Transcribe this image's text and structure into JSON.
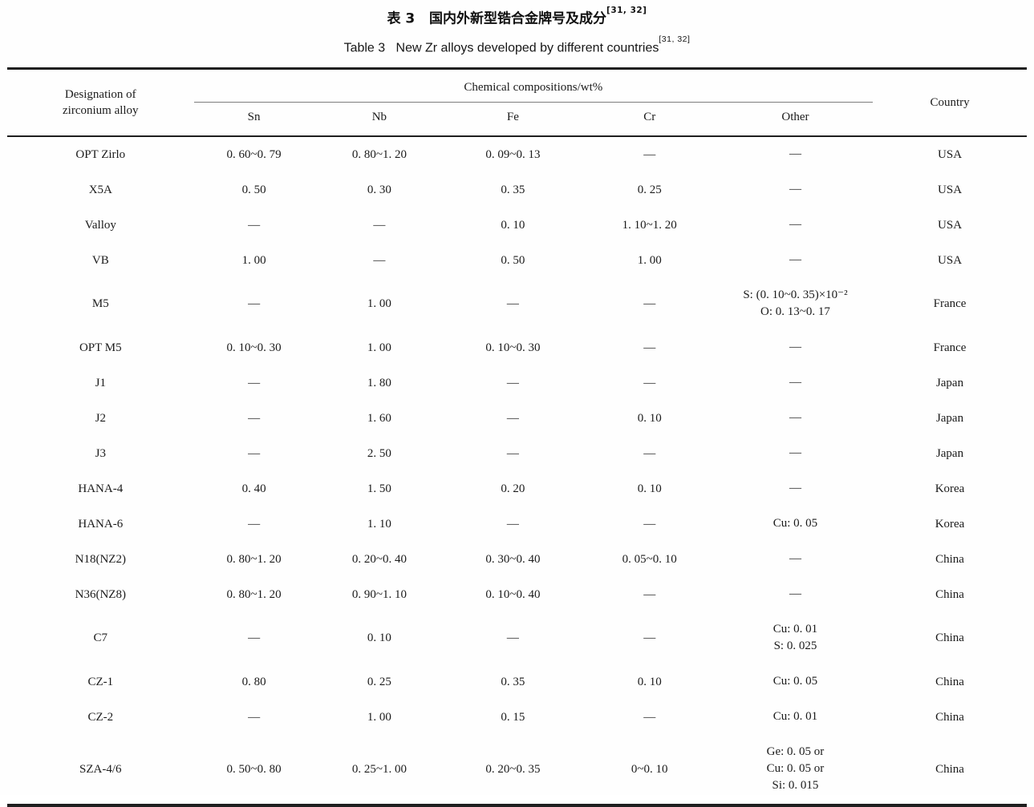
{
  "title": {
    "zh": "表 3   国内外新型锆合金牌号及成分",
    "zh_ref": "[31, 32]",
    "en": "Table 3   New Zr alloys developed by different countries",
    "en_ref": "[31, 32]"
  },
  "table": {
    "header": {
      "designation": "Designation of\nzirconium alloy",
      "group": "Chemical compositions/wt%",
      "elements": [
        "Sn",
        "Nb",
        "Fe",
        "Cr",
        "Other"
      ],
      "country": "Country"
    },
    "columns": [
      "name",
      "sn",
      "nb",
      "fe",
      "cr",
      "other",
      "country"
    ],
    "rows": [
      {
        "name": "OPT Zirlo",
        "sn": "0. 60~0. 79",
        "nb": "0. 80~1. 20",
        "fe": "0. 09~0. 13",
        "cr": "—",
        "other": "—",
        "country": "USA"
      },
      {
        "name": "X5A",
        "sn": "0. 50",
        "nb": "0. 30",
        "fe": "0. 35",
        "cr": "0. 25",
        "other": "—",
        "country": "USA"
      },
      {
        "name": "Valloy",
        "sn": "—",
        "nb": "—",
        "fe": "0. 10",
        "cr": "1. 10~1. 20",
        "other": "—",
        "country": "USA"
      },
      {
        "name": "VB",
        "sn": "1. 00",
        "nb": "—",
        "fe": "0. 50",
        "cr": "1. 00",
        "other": "—",
        "country": "USA"
      },
      {
        "name": "M5",
        "sn": "—",
        "nb": "1. 00",
        "fe": "—",
        "cr": "—",
        "other": "S: (0. 10~0. 35)×10⁻²\nO: 0. 13~0. 17",
        "country": "France"
      },
      {
        "name": "OPT M5",
        "sn": "0. 10~0. 30",
        "nb": "1. 00",
        "fe": "0. 10~0. 30",
        "cr": "—",
        "other": "—",
        "country": "France"
      },
      {
        "name": "J1",
        "sn": "—",
        "nb": "1. 80",
        "fe": "—",
        "cr": "—",
        "other": "—",
        "country": "Japan"
      },
      {
        "name": "J2",
        "sn": "—",
        "nb": "1. 60",
        "fe": "—",
        "cr": "0. 10",
        "other": "—",
        "country": "Japan"
      },
      {
        "name": "J3",
        "sn": "—",
        "nb": "2. 50",
        "fe": "—",
        "cr": "—",
        "other": "—",
        "country": "Japan"
      },
      {
        "name": "HANA-4",
        "sn": "0. 40",
        "nb": "1. 50",
        "fe": "0. 20",
        "cr": "0. 10",
        "other": "—",
        "country": "Korea"
      },
      {
        "name": "HANA-6",
        "sn": "—",
        "nb": "1. 10",
        "fe": "—",
        "cr": "—",
        "other": "Cu: 0. 05",
        "country": "Korea"
      },
      {
        "name": "N18(NZ2)",
        "sn": "0. 80~1. 20",
        "nb": "0. 20~0. 40",
        "fe": "0. 30~0. 40",
        "cr": "0. 05~0. 10",
        "other": "—",
        "country": "China"
      },
      {
        "name": "N36(NZ8)",
        "sn": "0. 80~1. 20",
        "nb": "0. 90~1. 10",
        "fe": "0. 10~0. 40",
        "cr": "—",
        "other": "—",
        "country": "China"
      },
      {
        "name": "C7",
        "sn": "—",
        "nb": "0. 10",
        "fe": "—",
        "cr": "—",
        "other": "Cu: 0. 01\nS: 0. 025",
        "country": "China"
      },
      {
        "name": "CZ-1",
        "sn": "0. 80",
        "nb": "0. 25",
        "fe": "0. 35",
        "cr": "0. 10",
        "other": "Cu: 0. 05",
        "country": "China"
      },
      {
        "name": "CZ-2",
        "sn": "—",
        "nb": "1. 00",
        "fe": "0. 15",
        "cr": "—",
        "other": "Cu: 0. 01",
        "country": "China"
      },
      {
        "name": "SZA-4/6",
        "sn": "0. 50~0. 80",
        "nb": "0. 25~1. 00",
        "fe": "0. 20~0. 35",
        "cr": "0~0. 10",
        "other": "Ge: 0. 05 or\nCu: 0. 05 or\nSi: 0. 015",
        "country": "China"
      }
    ]
  }
}
